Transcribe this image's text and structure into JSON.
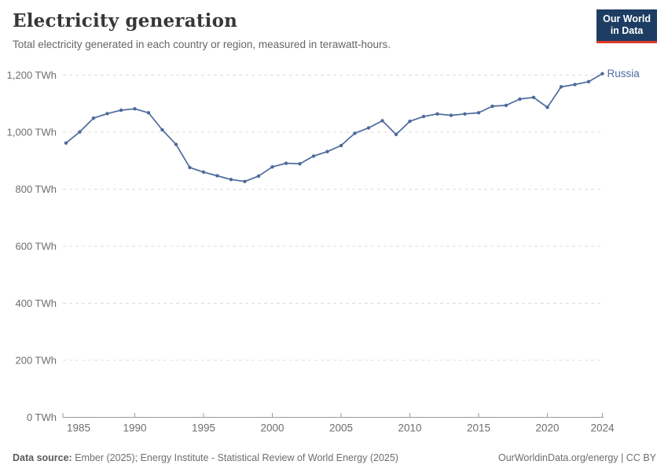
{
  "header": {
    "title": "Electricity generation",
    "subtitle": "Total electricity generated in each country or region, measured in terawatt-hours.",
    "logo": {
      "line1": "Our World",
      "line2": "in Data",
      "bg_color": "#1d3d63",
      "accent_color": "#d93a2b",
      "text_color": "#ffffff"
    }
  },
  "chart_data": {
    "type": "line",
    "title": "Electricity generation",
    "unit": "TWh",
    "xlabel": "",
    "ylabel": "",
    "ylim": [
      0,
      1260
    ],
    "xlim": [
      1985,
      2024
    ],
    "grid": true,
    "legend_position": "end-of-line",
    "yticks": [
      0,
      200,
      400,
      600,
      800,
      1000,
      1200
    ],
    "xticks": [
      1985,
      1990,
      1995,
      2000,
      2005,
      2010,
      2015,
      2020,
      2024
    ],
    "series": [
      {
        "name": "Russia",
        "color": "#4c6a9c",
        "x": [
          1985,
          1986,
          1987,
          1988,
          1989,
          1990,
          1991,
          1992,
          1993,
          1994,
          1995,
          1996,
          1997,
          1998,
          1999,
          2000,
          2001,
          2002,
          2003,
          2004,
          2005,
          2006,
          2007,
          2008,
          2009,
          2010,
          2011,
          2012,
          2013,
          2014,
          2015,
          2016,
          2017,
          2018,
          2019,
          2020,
          2021,
          2022,
          2023,
          2024
        ],
        "values": [
          962,
          1001,
          1049,
          1065,
          1077,
          1082,
          1068,
          1008,
          957,
          876,
          860,
          847,
          834,
          827,
          846,
          878,
          891,
          889,
          916,
          932,
          953,
          996,
          1015,
          1040,
          992,
          1038,
          1055,
          1064,
          1059,
          1064,
          1068,
          1091,
          1094,
          1116,
          1122,
          1087,
          1159,
          1167,
          1177,
          1205
        ]
      }
    ],
    "colors": {
      "gridline": "#dedede",
      "axis": "#9a9a9a",
      "tick_label": "#6e6e73"
    }
  },
  "footer": {
    "source_label": "Data source:",
    "source_text": "Ember (2025); Energy Institute - Statistical Review of World Energy (2025)",
    "link_text": "OurWorldinData.org/energy | CC BY"
  }
}
